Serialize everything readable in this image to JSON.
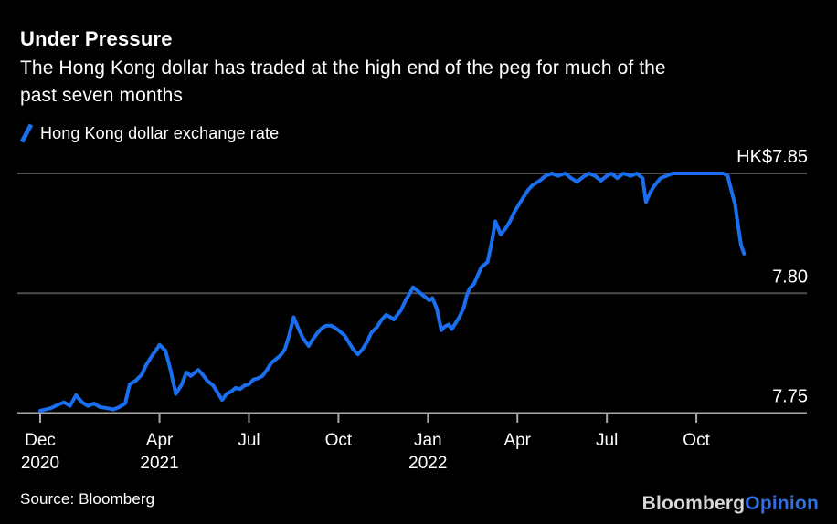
{
  "header": {
    "title": "Under Pressure",
    "subtitle_lines": [
      "The Hong Kong dollar has traded at the high end of the peg for much of the",
      "past seven months"
    ]
  },
  "legend": {
    "label": "Hong Kong dollar exchange rate"
  },
  "footer": {
    "source": "Source: Bloomberg",
    "logo_primary": "Bloomberg",
    "logo_secondary": "Opinion"
  },
  "colors": {
    "background": "#000000",
    "text": "#ffffff",
    "line": "#1a6ff0",
    "gridline": "#4d4d4d",
    "axis": "#a9a9a9",
    "logo_gray": "#d8d8d8",
    "logo_blue": "#2f6fe0"
  },
  "chart_data": {
    "type": "line",
    "title": "Under Pressure",
    "series_name": "Hong Kong dollar exchange rate",
    "xlabel": "",
    "ylabel": "",
    "grid": "horizontal",
    "legend_position": "top-left",
    "x_unit": "months since Dec 2020",
    "x_range": [
      0,
      23.6
    ],
    "y_axis": {
      "min": 7.75,
      "max": 7.85,
      "gridlines": [
        7.85,
        7.8,
        7.75
      ],
      "labels": [
        "HK$7.85",
        "7.80",
        "7.75"
      ]
    },
    "x_axis": {
      "ticks": [
        {
          "m": 0,
          "label": "Dec",
          "year": "2020"
        },
        {
          "m": 4,
          "label": "Apr",
          "year": "2021"
        },
        {
          "m": 7,
          "label": "Jul"
        },
        {
          "m": 10,
          "label": "Oct"
        },
        {
          "m": 13,
          "label": "Jan",
          "year": "2022"
        },
        {
          "m": 16,
          "label": "Apr"
        },
        {
          "m": 19,
          "label": "Jul"
        },
        {
          "m": 22,
          "label": "Oct"
        }
      ]
    },
    "points": [
      [
        0.0,
        7.751
      ],
      [
        0.35,
        7.752
      ],
      [
        0.6,
        7.7535
      ],
      [
        0.8,
        7.7545
      ],
      [
        1.0,
        7.753
      ],
      [
        1.2,
        7.7575
      ],
      [
        1.4,
        7.7545
      ],
      [
        1.6,
        7.753
      ],
      [
        1.8,
        7.754
      ],
      [
        2.0,
        7.7525
      ],
      [
        2.25,
        7.752
      ],
      [
        2.45,
        7.7515
      ],
      [
        2.65,
        7.7525
      ],
      [
        2.85,
        7.754
      ],
      [
        3.0,
        7.762
      ],
      [
        3.2,
        7.7635
      ],
      [
        3.4,
        7.766
      ],
      [
        3.55,
        7.77
      ],
      [
        3.75,
        7.774
      ],
      [
        3.9,
        7.7765
      ],
      [
        4.0,
        7.7785
      ],
      [
        4.2,
        7.776
      ],
      [
        4.35,
        7.769
      ],
      [
        4.55,
        7.758
      ],
      [
        4.75,
        7.762
      ],
      [
        4.9,
        7.767
      ],
      [
        5.05,
        7.7655
      ],
      [
        5.2,
        7.767
      ],
      [
        5.3,
        7.768
      ],
      [
        5.45,
        7.766
      ],
      [
        5.6,
        7.7635
      ],
      [
        5.8,
        7.7615
      ],
      [
        6.0,
        7.7575
      ],
      [
        6.1,
        7.7555
      ],
      [
        6.25,
        7.758
      ],
      [
        6.4,
        7.759
      ],
      [
        6.55,
        7.7605
      ],
      [
        6.7,
        7.76
      ],
      [
        6.85,
        7.7615
      ],
      [
        7.0,
        7.762
      ],
      [
        7.15,
        7.764
      ],
      [
        7.3,
        7.7645
      ],
      [
        7.45,
        7.7655
      ],
      [
        7.6,
        7.768
      ],
      [
        7.75,
        7.771
      ],
      [
        7.9,
        7.7725
      ],
      [
        8.05,
        7.774
      ],
      [
        8.2,
        7.7765
      ],
      [
        8.35,
        7.7825
      ],
      [
        8.5,
        7.79
      ],
      [
        8.65,
        7.7855
      ],
      [
        8.8,
        7.7815
      ],
      [
        9.0,
        7.778
      ],
      [
        9.15,
        7.781
      ],
      [
        9.3,
        7.7835
      ],
      [
        9.45,
        7.7855
      ],
      [
        9.6,
        7.7865
      ],
      [
        9.75,
        7.7865
      ],
      [
        9.9,
        7.7855
      ],
      [
        10.05,
        7.784
      ],
      [
        10.2,
        7.7825
      ],
      [
        10.35,
        7.7795
      ],
      [
        10.5,
        7.7765
      ],
      [
        10.65,
        7.7745
      ],
      [
        10.8,
        7.7765
      ],
      [
        10.95,
        7.7795
      ],
      [
        11.1,
        7.7835
      ],
      [
        11.3,
        7.786
      ],
      [
        11.45,
        7.789
      ],
      [
        11.6,
        7.791
      ],
      [
        11.75,
        7.79
      ],
      [
        11.85,
        7.789
      ],
      [
        11.95,
        7.7905
      ],
      [
        12.1,
        7.793
      ],
      [
        12.25,
        7.797
      ],
      [
        12.4,
        7.8
      ],
      [
        12.5,
        7.8025
      ],
      [
        12.65,
        7.801
      ],
      [
        12.8,
        7.7995
      ],
      [
        12.95,
        7.798
      ],
      [
        13.05,
        7.797
      ],
      [
        13.15,
        7.798
      ],
      [
        13.3,
        7.7935
      ],
      [
        13.45,
        7.7845
      ],
      [
        13.55,
        7.786
      ],
      [
        13.7,
        7.787
      ],
      [
        13.8,
        7.785
      ],
      [
        13.95,
        7.788
      ],
      [
        14.05,
        7.79
      ],
      [
        14.2,
        7.794
      ],
      [
        14.3,
        7.799
      ],
      [
        14.4,
        7.802
      ],
      [
        14.55,
        7.804
      ],
      [
        14.65,
        7.807
      ],
      [
        14.8,
        7.811
      ],
      [
        15.0,
        7.813
      ],
      [
        15.15,
        7.822
      ],
      [
        15.26,
        7.83
      ],
      [
        15.44,
        7.8245
      ],
      [
        15.6,
        7.827
      ],
      [
        15.75,
        7.83
      ],
      [
        15.9,
        7.834
      ],
      [
        16.05,
        7.837
      ],
      [
        16.2,
        7.84
      ],
      [
        16.35,
        7.843
      ],
      [
        16.5,
        7.845
      ],
      [
        16.75,
        7.847
      ],
      [
        16.95,
        7.849
      ],
      [
        17.15,
        7.85
      ],
      [
        17.35,
        7.849
      ],
      [
        17.6,
        7.85
      ],
      [
        17.8,
        7.848
      ],
      [
        18.0,
        7.8465
      ],
      [
        18.2,
        7.8485
      ],
      [
        18.4,
        7.85
      ],
      [
        18.6,
        7.849
      ],
      [
        18.8,
        7.847
      ],
      [
        19.0,
        7.849
      ],
      [
        19.15,
        7.85
      ],
      [
        19.35,
        7.848
      ],
      [
        19.55,
        7.85
      ],
      [
        19.8,
        7.849
      ],
      [
        20.0,
        7.85
      ],
      [
        20.2,
        7.848
      ],
      [
        20.31,
        7.838
      ],
      [
        20.45,
        7.842
      ],
      [
        20.6,
        7.845
      ],
      [
        20.8,
        7.848
      ],
      [
        21.0,
        7.849
      ],
      [
        21.2,
        7.85
      ],
      [
        21.45,
        7.85
      ],
      [
        21.7,
        7.85
      ],
      [
        21.95,
        7.85
      ],
      [
        22.2,
        7.85
      ],
      [
        22.45,
        7.85
      ],
      [
        22.7,
        7.85
      ],
      [
        22.9,
        7.85
      ],
      [
        23.05,
        7.849
      ],
      [
        23.15,
        7.844
      ],
      [
        23.3,
        7.837
      ],
      [
        23.4,
        7.828
      ],
      [
        23.5,
        7.82
      ],
      [
        23.6,
        7.8165
      ]
    ]
  }
}
